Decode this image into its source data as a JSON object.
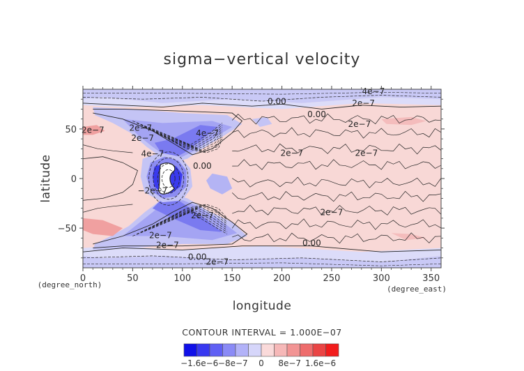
{
  "chart_data": {
    "type": "heatmap",
    "title": "sigma−vertical velocity",
    "xlabel": "longitude",
    "ylabel": "latitude",
    "x_unit": "(degree_east)",
    "y_unit": "(degree_north)",
    "xlim": [
      0,
      360
    ],
    "ylim": [
      -90,
      90
    ],
    "x_ticks": [
      "0",
      "50",
      "100",
      "150",
      "200",
      "250",
      "300",
      "350"
    ],
    "x_tick_values": [
      0,
      50,
      100,
      150,
      200,
      250,
      300,
      350
    ],
    "y_ticks": [
      "50",
      "0",
      "−50"
    ],
    "y_tick_values": [
      50,
      0,
      -50
    ],
    "contour_interval_text": "CONTOUR INTERVAL = 1.000E−07",
    "contour_labels": [
      {
        "text": "0.00",
        "lon": 195,
        "lat": 75
      },
      {
        "text": "0.00",
        "lon": 235,
        "lat": 62
      },
      {
        "text": "4e−7",
        "lon": 292,
        "lat": 85
      },
      {
        "text": "2e−7",
        "lon": 282,
        "lat": 73
      },
      {
        "text": "2e−7",
        "lon": 278,
        "lat": 52
      },
      {
        "text": "2e−7",
        "lon": 10,
        "lat": 46
      },
      {
        "text": "2e−7",
        "lon": 58,
        "lat": 48
      },
      {
        "text": "2e−7",
        "lon": 60,
        "lat": 38
      },
      {
        "text": "4e−7",
        "lon": 70,
        "lat": 22
      },
      {
        "text": "4e−7",
        "lon": 125,
        "lat": 43
      },
      {
        "text": "0.00",
        "lon": 120,
        "lat": 10
      },
      {
        "text": "2e−7",
        "lon": 210,
        "lat": 23
      },
      {
        "text": "2e−7",
        "lon": 285,
        "lat": 23
      },
      {
        "text": "2e−7",
        "lon": 250,
        "lat": -37
      },
      {
        "text": "2e−7",
        "lon": 120,
        "lat": -40
      },
      {
        "text": "−2e−7",
        "lon": 70,
        "lat": -15
      },
      {
        "text": "2e−7",
        "lon": 78,
        "lat": -60
      },
      {
        "text": "2e−7",
        "lon": 85,
        "lat": -70
      },
      {
        "text": "0.00",
        "lon": 230,
        "lat": -68
      },
      {
        "text": "0.00",
        "lon": 115,
        "lat": -82
      },
      {
        "text": "2e−7",
        "lon": 135,
        "lat": -87
      }
    ],
    "colorbar": {
      "ticks": [
        "−1.6e−6",
        "−8e−7",
        "0",
        "8e−7",
        "1.6e−6"
      ],
      "colors": [
        "#1010e8",
        "#3838f0",
        "#6060f4",
        "#8a8af6",
        "#b2b2f8",
        "#d6d6fa",
        "#fadada",
        "#f6b8b8",
        "#f29494",
        "#ee6c6c",
        "#ea4444",
        "#f21c1c"
      ]
    },
    "legend": "colorbar-bottom",
    "grid": false
  }
}
